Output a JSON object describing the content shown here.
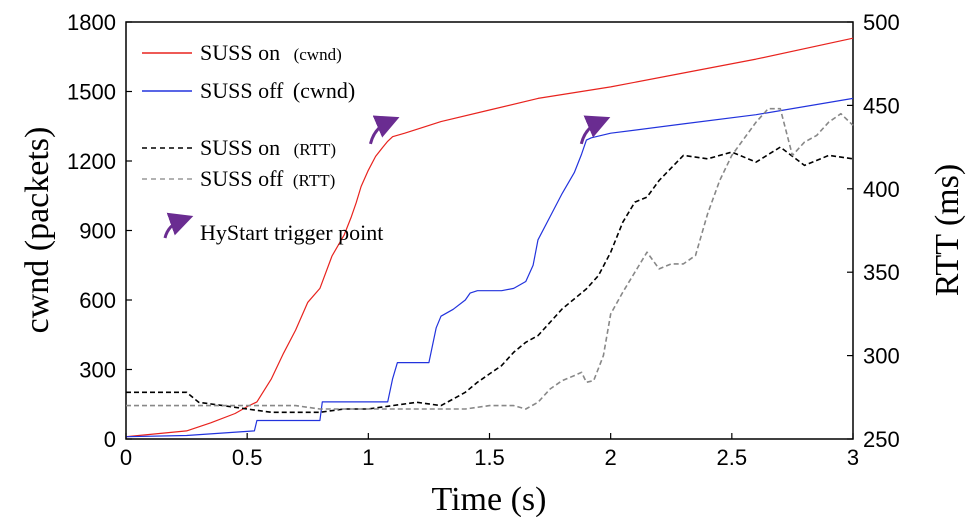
{
  "chart_data": {
    "type": "line",
    "xlabel": "Time (s)",
    "ylabel_left": "cwnd (packets)",
    "ylabel_right": "RTT (ms)",
    "xlim": [
      0,
      3
    ],
    "ylim_left": [
      0,
      1800
    ],
    "ylim_right": [
      250,
      500
    ],
    "x_ticks": [
      "0",
      "0.5",
      "1",
      "1.5",
      "2",
      "2.5",
      "3"
    ],
    "y_ticks_left": [
      "0",
      "300",
      "600",
      "900",
      "1200",
      "1500",
      "1800"
    ],
    "y_ticks_right": [
      "250",
      "300",
      "350",
      "400",
      "450",
      "500"
    ],
    "grid": false,
    "legend_position": "top-left",
    "legend": [
      {
        "label": "SUSS on",
        "suffix": "(cwnd)"
      },
      {
        "label": "SUSS off",
        "suffix": "(cwnd)"
      },
      {
        "label": "SUSS on",
        "suffix": "(RTT)"
      },
      {
        "label": "SUSS off",
        "suffix": "(RTT)"
      },
      {
        "label": "HyStart trigger point",
        "suffix": ""
      }
    ],
    "colors": {
      "suss_on_cwnd": "#e8231e",
      "suss_off_cwnd": "#2233dd",
      "suss_on_rtt": "#000000",
      "suss_off_rtt": "#888888",
      "hystart": "#6a2c91"
    },
    "series": [
      {
        "name": "SUSS on (cwnd)",
        "axis": "left",
        "style": "solid",
        "x": [
          0,
          0.25,
          0.35,
          0.45,
          0.5,
          0.54,
          0.6,
          0.65,
          0.7,
          0.75,
          0.8,
          0.85,
          0.9,
          0.93,
          0.95,
          0.97,
          1.0,
          1.03,
          1.06,
          1.08,
          1.1,
          1.15,
          1.3,
          1.5,
          1.7,
          2.0,
          2.3,
          2.6,
          3.0
        ],
        "y": [
          10,
          35,
          70,
          110,
          140,
          160,
          260,
          370,
          470,
          590,
          650,
          790,
          880,
          960,
          1020,
          1090,
          1160,
          1220,
          1260,
          1285,
          1305,
          1320,
          1370,
          1420,
          1470,
          1520,
          1580,
          1640,
          1730
        ]
      },
      {
        "name": "SUSS off (cwnd)",
        "axis": "left",
        "style": "solid",
        "x": [
          0,
          0.25,
          0.53,
          0.54,
          0.8,
          0.81,
          1.08,
          1.1,
          1.12,
          1.25,
          1.28,
          1.3,
          1.35,
          1.4,
          1.42,
          1.45,
          1.48,
          1.5,
          1.55,
          1.6,
          1.65,
          1.68,
          1.7,
          1.75,
          1.8,
          1.85,
          1.88,
          1.9,
          1.92,
          2.0,
          2.3,
          2.6,
          3.0
        ],
        "y": [
          10,
          15,
          35,
          80,
          80,
          160,
          160,
          260,
          330,
          330,
          480,
          530,
          560,
          600,
          630,
          640,
          640,
          640,
          640,
          650,
          680,
          750,
          860,
          960,
          1060,
          1150,
          1230,
          1290,
          1300,
          1320,
          1360,
          1400,
          1470
        ]
      },
      {
        "name": "SUSS on (RTT)",
        "axis": "right",
        "style": "dashed",
        "x": [
          0,
          0.1,
          0.25,
          0.3,
          0.4,
          0.5,
          0.6,
          0.7,
          0.8,
          0.9,
          1.0,
          1.1,
          1.2,
          1.3,
          1.35,
          1.4,
          1.45,
          1.5,
          1.55,
          1.6,
          1.65,
          1.7,
          1.8,
          1.9,
          1.95,
          2.0,
          2.05,
          2.1,
          2.15,
          2.2,
          2.3,
          2.4,
          2.5,
          2.6,
          2.7,
          2.8,
          2.9,
          3.0
        ],
        "y": [
          278,
          278,
          278,
          272,
          270,
          268,
          266,
          266,
          266,
          268,
          268,
          270,
          272,
          270,
          274,
          278,
          284,
          289,
          294,
          302,
          308,
          312,
          328,
          340,
          348,
          362,
          380,
          392,
          395,
          405,
          420,
          418,
          422,
          416,
          425,
          414,
          420,
          418
        ]
      },
      {
        "name": "SUSS off (RTT)",
        "axis": "right",
        "style": "dashed",
        "x": [
          0,
          0.25,
          0.4,
          0.55,
          0.7,
          0.8,
          0.9,
          1.0,
          1.1,
          1.3,
          1.4,
          1.5,
          1.6,
          1.65,
          1.7,
          1.75,
          1.8,
          1.85,
          1.88,
          1.9,
          1.93,
          1.97,
          2.0,
          2.05,
          2.1,
          2.15,
          2.2,
          2.25,
          2.3,
          2.35,
          2.4,
          2.45,
          2.5,
          2.55,
          2.6,
          2.65,
          2.7,
          2.75,
          2.8,
          2.85,
          2.9,
          2.95,
          3.0
        ],
        "y": [
          270,
          270,
          270,
          270,
          270,
          268,
          268,
          268,
          268,
          268,
          268,
          270,
          270,
          268,
          272,
          280,
          285,
          288,
          290,
          284,
          285,
          300,
          325,
          338,
          350,
          362,
          352,
          355,
          355,
          360,
          385,
          405,
          420,
          430,
          440,
          448,
          448,
          420,
          428,
          432,
          440,
          445,
          438
        ]
      }
    ],
    "annotations": [
      {
        "label": "HyStart trigger point",
        "x": 1.05,
        "y": 1300
      },
      {
        "label": "HyStart trigger point",
        "x": 1.92,
        "y": 1300
      }
    ]
  }
}
